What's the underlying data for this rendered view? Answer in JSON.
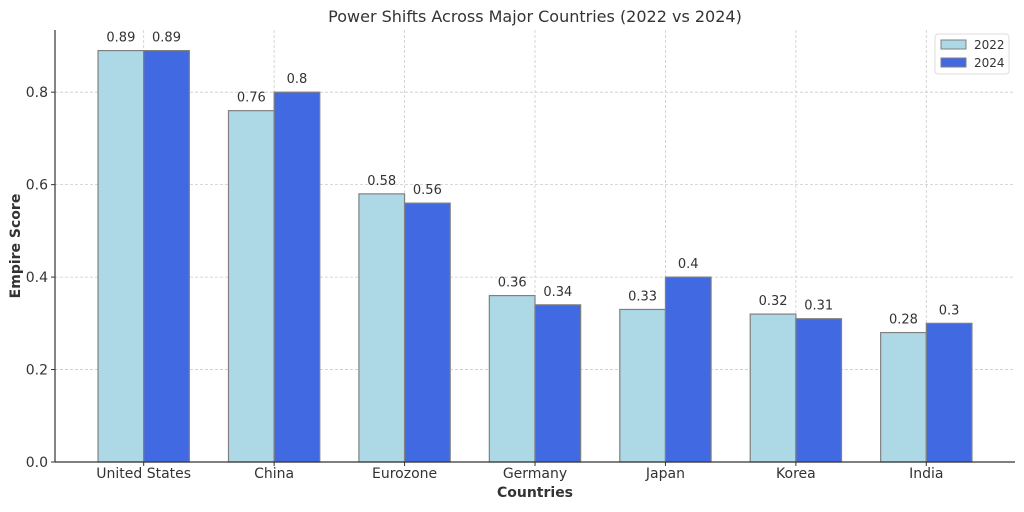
{
  "chart_data": {
    "type": "bar",
    "title": "Power Shifts Across Major Countries (2022 vs 2024)",
    "xlabel": "Countries",
    "ylabel": "Empire Score",
    "categories": [
      "United States",
      "China",
      "Eurozone",
      "Germany",
      "Japan",
      "Korea",
      "India"
    ],
    "series": [
      {
        "name": "2022",
        "color": "#add8e6",
        "values": [
          0.89,
          0.76,
          0.58,
          0.36,
          0.33,
          0.32,
          0.28
        ],
        "labels": [
          "0.89",
          "0.76",
          "0.58",
          "0.36",
          "0.33",
          "0.32",
          "0.28"
        ]
      },
      {
        "name": "2024",
        "color": "#4169e1",
        "values": [
          0.89,
          0.8,
          0.56,
          0.34,
          0.4,
          0.31,
          0.3
        ],
        "labels": [
          "0.89",
          "0.8",
          "0.56",
          "0.34",
          "0.4",
          "0.31",
          "0.3"
        ]
      }
    ],
    "ylim": [
      0,
      0.9345
    ],
    "yticks": [
      0.0,
      0.2,
      0.4,
      0.6,
      0.8
    ],
    "ytick_labels": [
      "0.0",
      "0.2",
      "0.4",
      "0.6",
      "0.8"
    ],
    "grid": true,
    "legend": "top-right",
    "bar_edge_color": "#808080"
  }
}
